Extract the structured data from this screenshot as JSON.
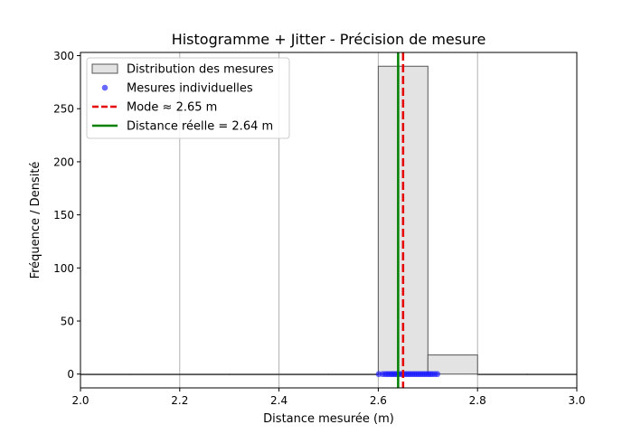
{
  "chart_data": {
    "type": "bar",
    "title": "Histogramme + Jitter - Précision de mesure",
    "xlabel": "Distance mesurée (m)",
    "ylabel": "Fréquence / Densité",
    "xlim": [
      2.0,
      3.0
    ],
    "ylim": [
      -13,
      303
    ],
    "grid": true,
    "x_ticks": [
      "2.0",
      "2.2",
      "2.4",
      "2.6",
      "2.8",
      "3.0"
    ],
    "y_ticks": [
      "0",
      "50",
      "100",
      "150",
      "200",
      "250",
      "300"
    ],
    "bins": [
      {
        "x0": 2.0,
        "x1": 2.1,
        "count": 0
      },
      {
        "x0": 2.1,
        "x1": 2.2,
        "count": 0
      },
      {
        "x0": 2.2,
        "x1": 2.3,
        "count": 0
      },
      {
        "x0": 2.3,
        "x1": 2.4,
        "count": 0
      },
      {
        "x0": 2.4,
        "x1": 2.5,
        "count": 0
      },
      {
        "x0": 2.5,
        "x1": 2.6,
        "count": 0
      },
      {
        "x0": 2.6,
        "x1": 2.7,
        "count": 290
      },
      {
        "x0": 2.7,
        "x1": 2.8,
        "count": 18
      },
      {
        "x0": 2.8,
        "x1": 2.9,
        "count": 0
      },
      {
        "x0": 2.9,
        "x1": 3.0,
        "count": 0
      }
    ],
    "jitter_points": {
      "y": 0,
      "x": [
        2.601,
        2.609,
        2.614,
        2.618,
        2.622,
        2.626,
        2.629,
        2.633,
        2.636,
        2.64,
        2.645,
        2.649,
        2.653,
        2.657,
        2.661,
        2.665,
        2.669,
        2.673,
        2.677,
        2.681,
        2.685,
        2.689,
        2.693,
        2.697,
        2.701,
        2.705,
        2.709,
        2.714,
        2.719
      ]
    },
    "mode_line": {
      "x": 2.65
    },
    "true_line": {
      "x": 2.64
    },
    "legend": {
      "placement": "top-left",
      "entries": [
        {
          "label": "Distribution des mesures",
          "kind": "patch"
        },
        {
          "label": "Mesures individuelles",
          "kind": "dot"
        },
        {
          "label": "Mode ≈ 2.65 m",
          "kind": "dashed"
        },
        {
          "label": "Distance réelle = 2.64 m",
          "kind": "solid"
        }
      ]
    },
    "colors": {
      "bar_fill": "#e3e3e3",
      "bar_edge": "#555555",
      "points": "#1a1aff",
      "mode": "#e60000",
      "true": "#008000",
      "grid": "#b0b0b0"
    }
  }
}
